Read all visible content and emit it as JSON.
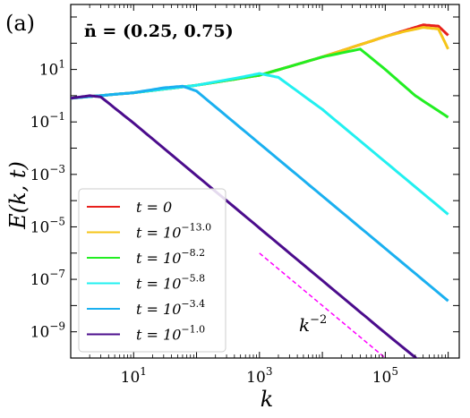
{
  "chart_data": {
    "type": "line",
    "panel_label": "(a)",
    "annotation": "n̄ = (0.25, 0.75)",
    "xlabel": "k",
    "ylabel": "E(k, t)",
    "x_scale": "log",
    "y_scale": "log",
    "xlim": [
      1,
      1500000
    ],
    "ylim": [
      1e-10,
      3000
    ],
    "x_ticks": [
      {
        "value": 10,
        "label": "10",
        "exp": "1"
      },
      {
        "value": 1000,
        "label": "10",
        "exp": "3"
      },
      {
        "value": 100000,
        "label": "10",
        "exp": "5"
      }
    ],
    "y_ticks": [
      {
        "value": 10,
        "label": "10",
        "exp": "1"
      },
      {
        "value": 0.1,
        "label": "10",
        "exp": "−1"
      },
      {
        "value": 0.001,
        "label": "10",
        "exp": "−3"
      },
      {
        "value": 1e-05,
        "label": "10",
        "exp": "−5"
      },
      {
        "value": 1e-07,
        "label": "10",
        "exp": "−7"
      },
      {
        "value": 1e-09,
        "label": "10",
        "exp": "−9"
      }
    ],
    "reference_line": {
      "label": "k",
      "label_exp": "−2",
      "color": "#ff00ff",
      "x": [
        1000,
        100000
      ],
      "y": [
        1e-06,
        1e-10
      ]
    },
    "legend": {
      "placement": "bottom-left"
    },
    "series": [
      {
        "name": "t = 0",
        "name_base": "t = 0",
        "name_exp": "",
        "color": "#e8201c",
        "x": [
          1,
          10,
          100,
          1000,
          10000,
          100000,
          200000,
          400000,
          700000,
          1000000
        ],
        "y": [
          0.8,
          1.3,
          2.5,
          6,
          30,
          180,
          300,
          500,
          450,
          200
        ]
      },
      {
        "name": "t = 10^−13.0",
        "name_base": "t = 10",
        "name_exp": "−13.0",
        "color": "#f5c518",
        "x": [
          1,
          10,
          100,
          1000,
          10000,
          100000,
          200000,
          400000,
          700000,
          1000000
        ],
        "y": [
          0.8,
          1.3,
          2.5,
          6,
          30,
          180,
          280,
          400,
          350,
          60
        ]
      },
      {
        "name": "t = 10^−8.2",
        "name_base": "t = 10",
        "name_exp": "−8.2",
        "color": "#22ee22",
        "x": [
          1,
          10,
          100,
          1000,
          10000,
          40000,
          100000,
          300000,
          1000000
        ],
        "y": [
          0.8,
          1.3,
          2.5,
          6,
          30,
          60,
          10,
          1,
          0.15
        ]
      },
      {
        "name": "t = 10^−5.8",
        "name_base": "t = 10",
        "name_exp": "−5.8",
        "color": "#22f0f0",
        "x": [
          1,
          10,
          100,
          500,
          1000,
          2000,
          10000,
          100000,
          1000000
        ],
        "y": [
          0.8,
          1.3,
          2.5,
          5,
          7,
          5,
          0.3,
          0.003,
          3e-05
        ]
      },
      {
        "name": "t = 10^−3.4",
        "name_base": "t = 10",
        "name_exp": "−3.4",
        "color": "#1ab0f0",
        "x": [
          1,
          10,
          30,
          60,
          100,
          1000,
          10000,
          100000,
          1000000
        ],
        "y": [
          0.8,
          1.3,
          2,
          2.3,
          1.5,
          0.015,
          0.00015,
          1.5e-06,
          1.5e-08
        ]
      },
      {
        "name": "t = 10^−1.0",
        "name_base": "t = 10",
        "name_exp": "−1.0",
        "color": "#4b0c8c",
        "x": [
          1,
          2,
          3,
          10,
          100,
          1000,
          10000,
          100000,
          1000000
        ],
        "y": [
          0.8,
          1,
          0.9,
          0.09,
          0.0009,
          9e-06,
          9e-08,
          9e-10,
          1e-11
        ]
      }
    ]
  }
}
